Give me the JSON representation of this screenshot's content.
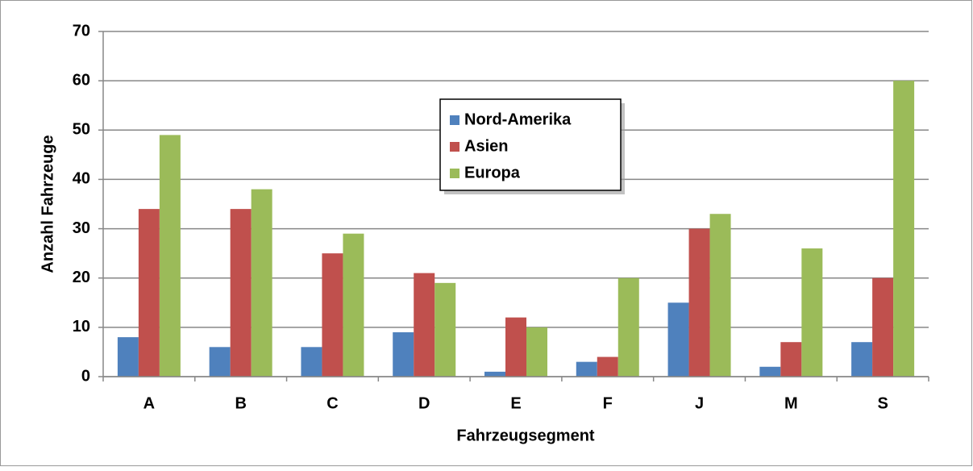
{
  "chart_data": {
    "type": "bar",
    "x_label": "Fahrzeugsegment",
    "y_label": "Anzahl Fahrzeuge",
    "categories": [
      "A",
      "B",
      "C",
      "D",
      "E",
      "F",
      "J",
      "M",
      "S"
    ],
    "series": [
      {
        "name": "Nord-Amerika",
        "color": "#4f81bd",
        "values": [
          8,
          6,
          6,
          9,
          1,
          3,
          15,
          2,
          7
        ]
      },
      {
        "name": "Asien",
        "color": "#c0504d",
        "values": [
          34,
          34,
          25,
          21,
          12,
          4,
          30,
          7,
          20
        ]
      },
      {
        "name": "Europa",
        "color": "#9bbb59",
        "values": [
          49,
          38,
          29,
          19,
          10,
          20,
          33,
          26,
          60
        ]
      }
    ],
    "ylim": [
      0,
      70
    ],
    "yticks": [
      0,
      10,
      20,
      30,
      40,
      50,
      60,
      70
    ],
    "grid": true,
    "legend": "top-center"
  }
}
